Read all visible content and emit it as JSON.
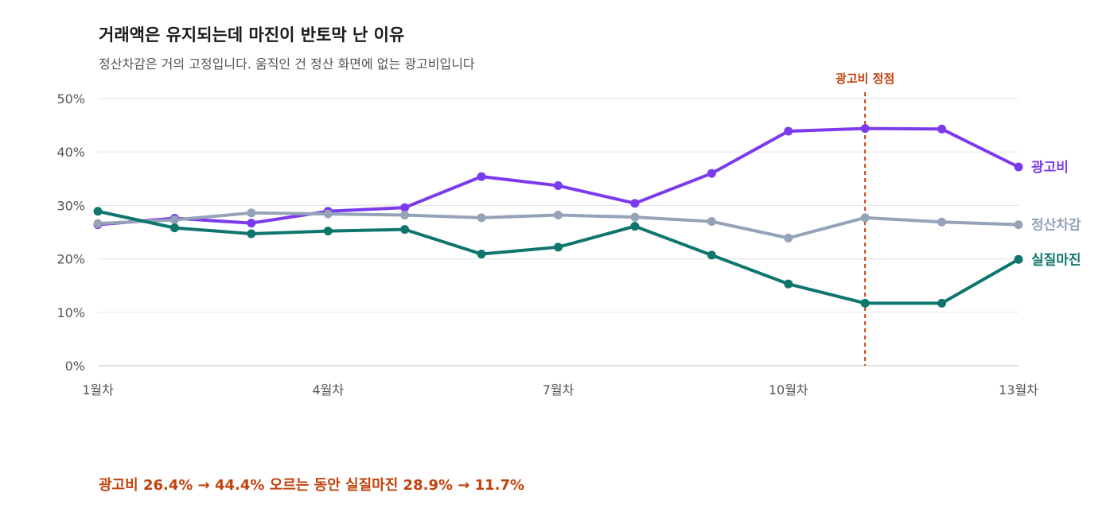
{
  "title": "거래액은 유지되는데 마진이 반토막 난 이유",
  "subtitle": "정산차감은 거의 고정입니다. 움직인 건 정산 화면에 없는 광고비입니다",
  "footnote": "광고비 26.4% → 44.4% 오르는 동안 실질마진 28.9% → 11.7%",
  "chart_data": {
    "type": "line",
    "x": [
      1,
      2,
      3,
      4,
      5,
      6,
      7,
      8,
      9,
      10,
      11,
      12,
      13
    ],
    "xticks": [
      1,
      4,
      7,
      10,
      13
    ],
    "xtick_labels": [
      "1월차",
      "4월차",
      "7월차",
      "10월차",
      "13월차"
    ],
    "xlim": [
      1,
      13
    ],
    "ylim": [
      0,
      50
    ],
    "yticks": [
      0,
      10,
      20,
      30,
      40,
      50
    ],
    "ytick_labels": [
      "0%",
      "10%",
      "20%",
      "30%",
      "40%",
      "50%"
    ],
    "grid": "horizontal",
    "series": [
      {
        "name": "광고비",
        "color": "#7c3aed",
        "values": [
          26.4,
          27.6,
          26.7,
          28.9,
          29.6,
          35.4,
          33.7,
          30.4,
          36.0,
          43.9,
          44.4,
          44.3,
          37.2
        ]
      },
      {
        "name": "정산차감",
        "color": "#94a3b8",
        "values": [
          26.6,
          27.3,
          28.6,
          28.4,
          28.2,
          27.7,
          28.2,
          27.8,
          27.0,
          23.9,
          27.7,
          26.9,
          26.4
        ]
      },
      {
        "name": "실질마진",
        "color": "#0f766e",
        "values": [
          28.9,
          25.8,
          24.7,
          25.2,
          25.5,
          20.9,
          22.2,
          26.1,
          20.7,
          15.3,
          11.7,
          11.7,
          19.9
        ]
      }
    ],
    "annotation": {
      "label": "광고비 정점",
      "x": 11,
      "color": "#c2410c"
    }
  }
}
